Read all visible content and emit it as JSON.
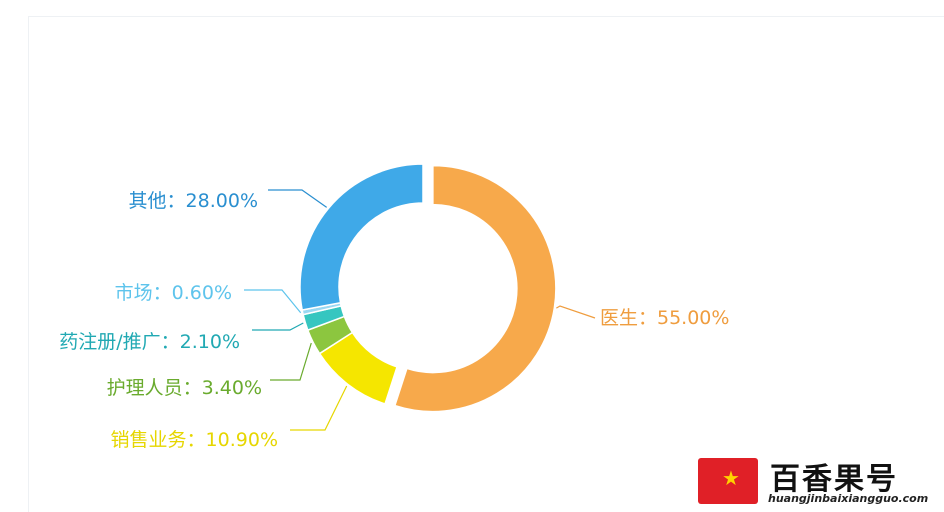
{
  "chart_data": {
    "type": "pie",
    "donut": true,
    "categories": [
      "医生",
      "销售业务",
      "护理人员",
      "药注册/推广",
      "市场",
      "其他"
    ],
    "values": [
      55.0,
      10.9,
      3.4,
      2.1,
      0.6,
      28.0
    ],
    "labels": [
      "医生：55.00%",
      "销售业务：10.90%",
      "护理人员：3.40%",
      "药注册/推广：2.10%",
      "市场：0.60%",
      "其他：28.00%"
    ],
    "colors": [
      "#f7a94b",
      "#f5e600",
      "#8cc63f",
      "#36c6c0",
      "#9ad8f2",
      "#3fa9e8"
    ],
    "label_colors": [
      "#ef9d3f",
      "#e6d600",
      "#6aab2e",
      "#21a9b3",
      "#5ec4ec",
      "#2a8fd0"
    ]
  },
  "watermark": {
    "title": "百香果号",
    "url": "huangjinbaixiangguo.com",
    "icon": "star-icon",
    "badge_color": "#e02027"
  }
}
